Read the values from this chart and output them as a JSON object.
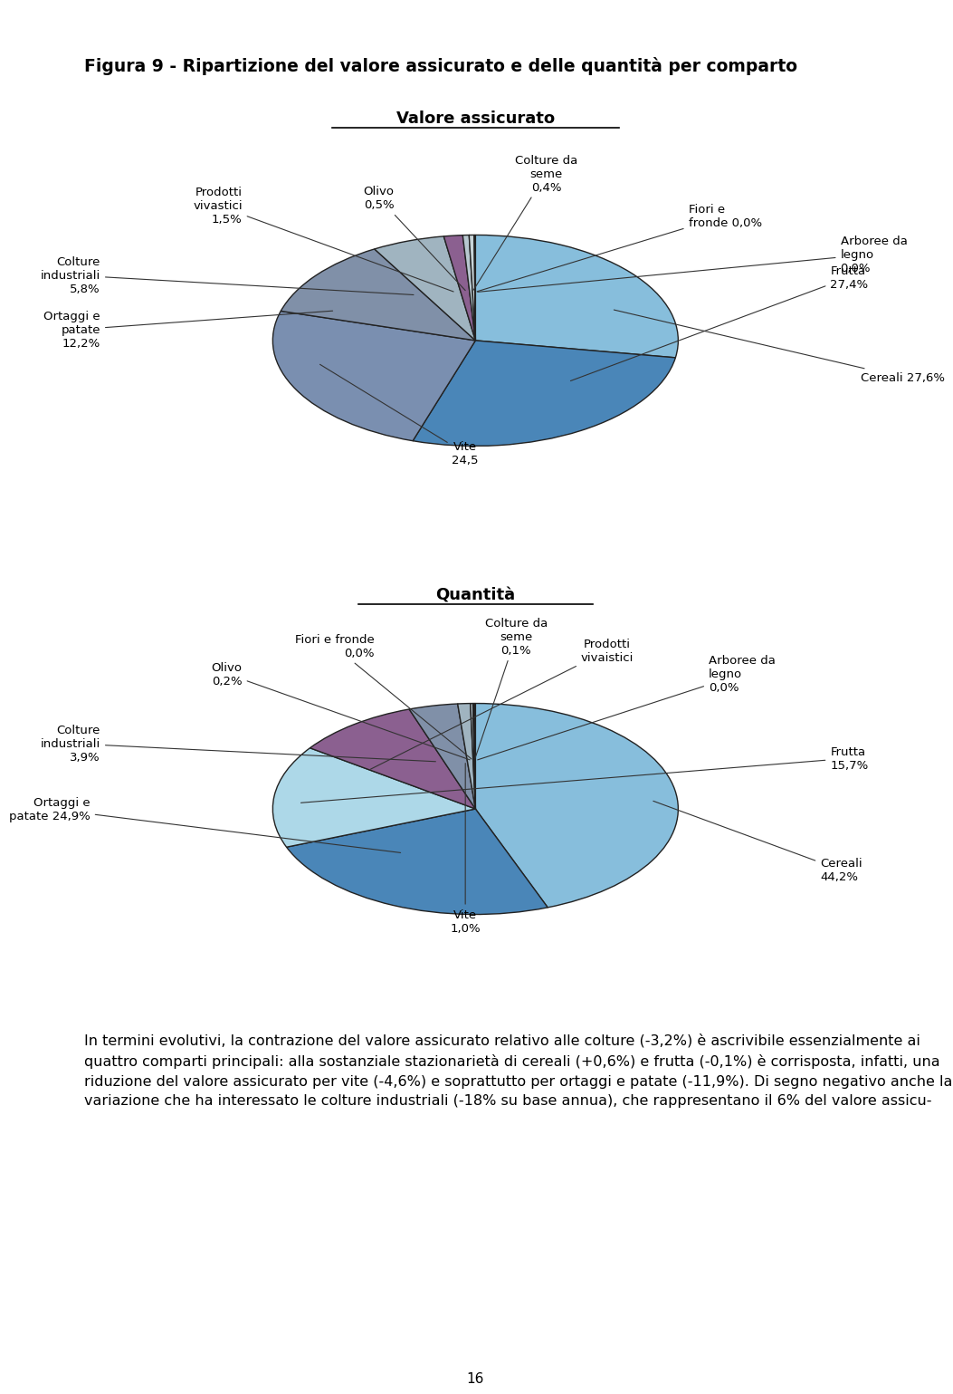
{
  "title": "Figura 9 - Ripartizione del valore assicurato e delle quantità per comparto",
  "subtitle1": "Valore assicurato",
  "subtitle2": "Quantità",
  "top_bar_color": "#5BC8D8",
  "background_color": "#ffffff",
  "pie1": {
    "values": [
      27.6,
      27.4,
      24.5,
      12.2,
      5.8,
      1.5,
      0.5,
      0.4,
      0.05,
      0.05
    ],
    "colors": [
      "#87BEDC",
      "#4A86B8",
      "#7A8FB0",
      "#8090A8",
      "#A0B4C0",
      "#8B6090",
      "#B8C8D0",
      "#C8D4D8",
      "#D0D8DC",
      "#D4DCDE"
    ],
    "label_specs": [
      [
        0,
        "Cereali 27,6%",
        1.9,
        -0.35,
        "left",
        "center"
      ],
      [
        1,
        "Frutta\n27,4%",
        1.75,
        0.6,
        "left",
        "center"
      ],
      [
        2,
        "Vite\n24,5",
        -0.05,
        -0.95,
        "center",
        "top"
      ],
      [
        3,
        "Ortaggi e\npatate\n12,2%",
        -1.85,
        0.1,
        "right",
        "center"
      ],
      [
        4,
        "Colture\nindustriali\n5,8%",
        -1.85,
        0.62,
        "right",
        "center"
      ],
      [
        5,
        "Prodotti\nvivastici\n1,5%",
        -1.15,
        1.28,
        "right",
        "center"
      ],
      [
        6,
        "Olivo\n0,5%",
        -0.4,
        1.35,
        "right",
        "center"
      ],
      [
        7,
        "Colture da\nseme\n0,4%",
        0.35,
        1.4,
        "center",
        "bottom"
      ],
      [
        8,
        "Fiori e\nfronde 0,0%",
        1.05,
        1.18,
        "left",
        "center"
      ],
      [
        9,
        "Arboree da\nlegno\n0,0%",
        1.8,
        0.82,
        "left",
        "center"
      ]
    ]
  },
  "pie2": {
    "values": [
      44.2,
      24.9,
      15.7,
      9.9,
      3.9,
      1.0,
      0.2,
      0.05,
      0.1,
      0.05
    ],
    "colors": [
      "#87BEDC",
      "#4A86B8",
      "#ADD8E8",
      "#8B6090",
      "#8090A8",
      "#A0B4C0",
      "#B8C8D0",
      "#D0D8DC",
      "#C8D4D8",
      "#D4DCDE"
    ],
    "label_specs": [
      [
        0,
        "Cereali\n44,2%",
        1.7,
        -0.58,
        "left",
        "center"
      ],
      [
        1,
        "Ortaggi e\npatate 24,9%",
        -1.9,
        0.0,
        "right",
        "center"
      ],
      [
        2,
        "Frutta\n15,7%",
        1.75,
        0.48,
        "left",
        "center"
      ],
      [
        3,
        "Prodotti\nvivaistici",
        0.65,
        1.38,
        "center",
        "bottom"
      ],
      [
        4,
        "Colture\nindustriali\n3,9%",
        -1.85,
        0.62,
        "right",
        "center"
      ],
      [
        5,
        "Vite\n1,0%",
        -0.05,
        -0.95,
        "center",
        "top"
      ],
      [
        6,
        "Olivo\n0,2%",
        -1.15,
        1.28,
        "right",
        "center"
      ],
      [
        7,
        "Fiori e fronde\n0,0%",
        -0.5,
        1.42,
        "right",
        "bottom"
      ],
      [
        8,
        "Colture da\nseme\n0,1%",
        0.2,
        1.45,
        "center",
        "bottom"
      ],
      [
        9,
        "Arboree da\nlegno\n0,0%",
        1.15,
        1.28,
        "left",
        "center"
      ]
    ]
  },
  "body_text": "In termini evolutivi, la contrazione del valore assicurato relativo alle colture (-3,2%) è ascrivibile essenzialmente ai quattro comparti principali: alla sostanziale stazionarietà di cereali (+0,6%) e frutta (-0,1%) è corrisposta, infatti, una riduzione del valore assicurato per vite (-4,6%) e soprattutto per ortaggi e patate (-11,9%). Di segno negativo anche la variazione che ha interessato le colture industriali (-18% su base annua), che rappresentano il 6% del valore assicu-",
  "page_number": "16"
}
